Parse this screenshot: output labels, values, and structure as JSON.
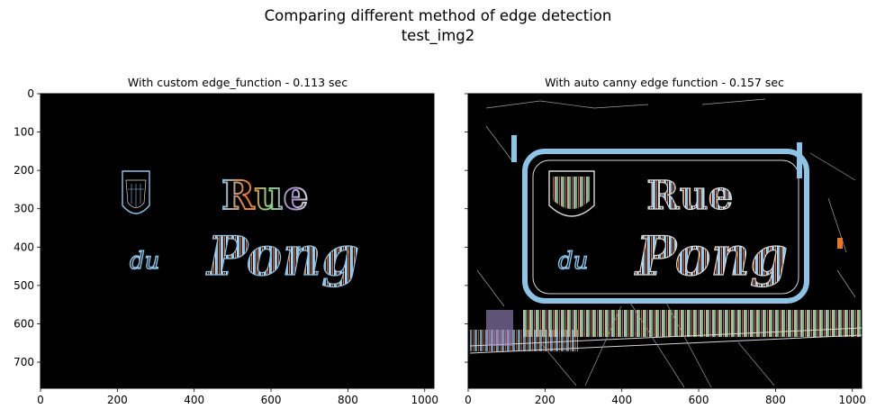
{
  "figure": {
    "title_line1": "Comparing different method of edge detection",
    "title_line2": "test_img2"
  },
  "chart_data": [
    {
      "type": "image",
      "title": "With custom edge_function - 0.113 sec",
      "xlim": [
        0,
        1024
      ],
      "ylim": [
        768,
        0
      ],
      "xticks": [
        0,
        200,
        400,
        600,
        800,
        1000
      ],
      "yticks": [
        0,
        100,
        200,
        300,
        400,
        500,
        600,
        700
      ],
      "show_y_tick_labels": true,
      "image_text": [
        "Rue",
        "du",
        "Pong"
      ]
    },
    {
      "type": "image",
      "title": "With auto canny edge function - 0.157 sec",
      "xlim": [
        0,
        1024
      ],
      "ylim": [
        768,
        0
      ],
      "xticks": [
        0,
        200,
        400,
        600,
        800,
        1000
      ],
      "yticks": [
        0,
        100,
        200,
        300,
        400,
        500,
        600,
        700
      ],
      "show_y_tick_labels": false,
      "image_text": [
        "Rue",
        "du",
        "Pong"
      ]
    }
  ],
  "colors": {
    "background": "#000000",
    "edge_blue": "#8fc3e6",
    "edge_orange": "#e8772e",
    "edge_green": "#8fd08a",
    "edge_purple": "#9e8ac8",
    "edge_white": "#d8d8d8"
  }
}
